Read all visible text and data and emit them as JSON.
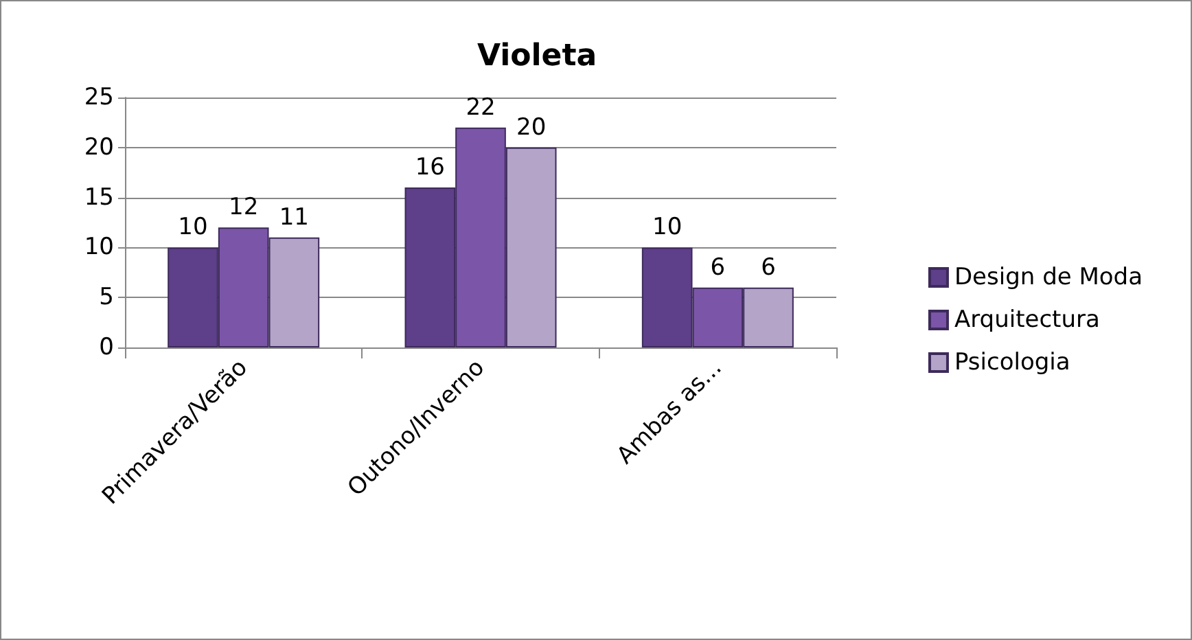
{
  "chart_data": {
    "type": "bar",
    "title": "Violeta",
    "categories": [
      "Primavera/Verão",
      "Outono/Inverno",
      "Ambas as..."
    ],
    "series": [
      {
        "name": "Design de Moda",
        "color": "#5e3f8a",
        "values": [
          10,
          16,
          10
        ]
      },
      {
        "name": "Arquitectura",
        "color": "#7b55a8",
        "values": [
          12,
          22,
          6
        ]
      },
      {
        "name": "Psicologia",
        "color": "#b3a4c8",
        "values": [
          11,
          20,
          6
        ]
      }
    ],
    "ylim": [
      0,
      25
    ],
    "yticks": [
      0,
      5,
      10,
      15,
      20,
      25
    ],
    "grid": "y",
    "legend": "right",
    "data_labels": true
  }
}
